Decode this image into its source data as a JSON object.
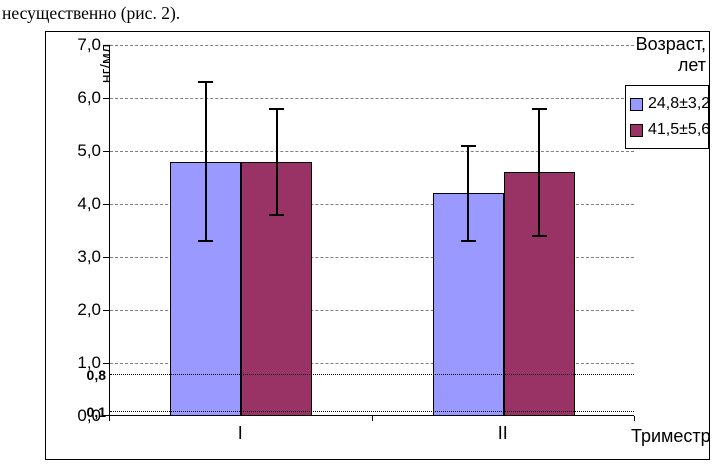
{
  "page": {
    "caption": "несущественно (рис. 2)."
  },
  "chart_data": {
    "type": "bar",
    "title": "",
    "ylabel": "нг/мл",
    "xlabel": "Триместр",
    "categories": [
      "I",
      "II"
    ],
    "series": [
      {
        "name": "24,8±3,2",
        "color": "#9999FF",
        "values": [
          4.8,
          4.2
        ],
        "errors": [
          1.5,
          0.9
        ]
      },
      {
        "name": "41,5±5,6",
        "color": "#993366",
        "values": [
          4.8,
          4.6
        ],
        "errors": [
          1.0,
          1.2
        ]
      }
    ],
    "ylim": [
      0,
      7
    ],
    "ytick_step": 1,
    "ytick_labels": [
      "0,0",
      "1,0",
      "2,0",
      "3,0",
      "4,0",
      "5,0",
      "6,0",
      "7,0"
    ],
    "reference_lines": [
      {
        "value": 0.8,
        "label": "0,8"
      },
      {
        "value": 0.1,
        "label": "0,1"
      }
    ],
    "legend_title": "Возраст, лет",
    "legend_position": "top-right",
    "grid": "horizontal-dashed",
    "plot_background": "#FFFFFF",
    "bar_border_color": "#000000"
  }
}
